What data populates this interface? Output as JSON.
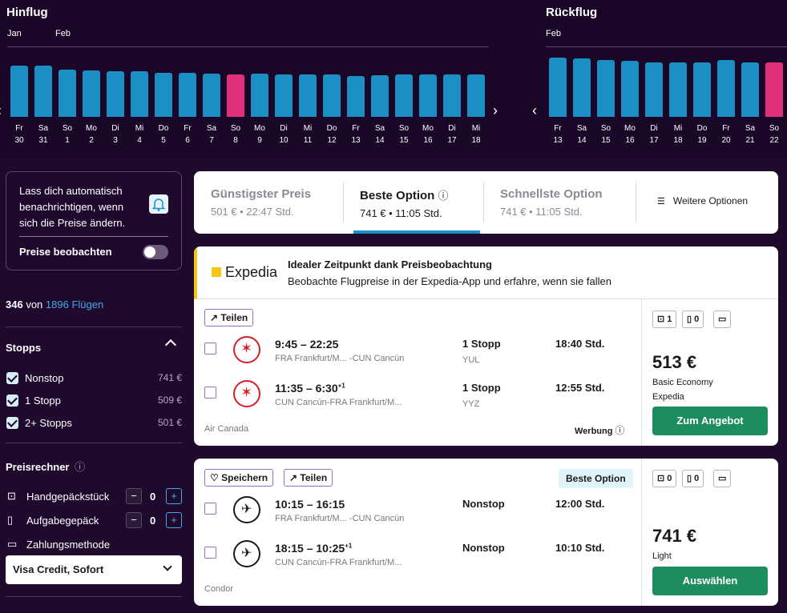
{
  "outbound": {
    "title": "Hinflug",
    "months": [
      "Jan",
      "Feb"
    ],
    "days": [
      {
        "wd": "Fr",
        "d": "30",
        "level": 0.87,
        "cheap": false
      },
      {
        "wd": "Sa",
        "d": "31",
        "level": 0.87,
        "cheap": false
      },
      {
        "wd": "So",
        "d": "1",
        "level": 0.81,
        "cheap": false
      },
      {
        "wd": "Mo",
        "d": "2",
        "level": 0.79,
        "cheap": false
      },
      {
        "wd": "Di",
        "d": "3",
        "level": 0.78,
        "cheap": false
      },
      {
        "wd": "Mi",
        "d": "4",
        "level": 0.78,
        "cheap": false
      },
      {
        "wd": "Do",
        "d": "5",
        "level": 0.76,
        "cheap": false
      },
      {
        "wd": "Fr",
        "d": "6",
        "level": 0.76,
        "cheap": false
      },
      {
        "wd": "Sa",
        "d": "7",
        "level": 0.74,
        "cheap": false
      },
      {
        "wd": "So",
        "d": "8",
        "level": 0.73,
        "cheap": true
      },
      {
        "wd": "Mo",
        "d": "9",
        "level": 0.74,
        "cheap": false
      },
      {
        "wd": "Di",
        "d": "10",
        "level": 0.72,
        "cheap": false
      },
      {
        "wd": "Mi",
        "d": "11",
        "level": 0.72,
        "cheap": false
      },
      {
        "wd": "Do",
        "d": "12",
        "level": 0.72,
        "cheap": false
      },
      {
        "wd": "Fr",
        "d": "13",
        "level": 0.7,
        "cheap": false
      },
      {
        "wd": "Sa",
        "d": "14",
        "level": 0.71,
        "cheap": false
      },
      {
        "wd": "So",
        "d": "15",
        "level": 0.72,
        "cheap": false
      },
      {
        "wd": "Mo",
        "d": "16",
        "level": 0.72,
        "cheap": false
      },
      {
        "wd": "Di",
        "d": "17",
        "level": 0.72,
        "cheap": false
      },
      {
        "wd": "Mi",
        "d": "18",
        "level": 0.72,
        "cheap": false
      }
    ]
  },
  "inbound": {
    "title": "Rückflug",
    "months": [
      "Feb"
    ],
    "days": [
      {
        "wd": "Fr",
        "d": "13",
        "level": 0.98,
        "cheap": false
      },
      {
        "wd": "Sa",
        "d": "14",
        "level": 0.97,
        "cheap": false
      },
      {
        "wd": "So",
        "d": "15",
        "level": 0.94,
        "cheap": false
      },
      {
        "wd": "Mo",
        "d": "16",
        "level": 0.93,
        "cheap": false
      },
      {
        "wd": "Di",
        "d": "17",
        "level": 0.9,
        "cheap": false
      },
      {
        "wd": "Mi",
        "d": "18",
        "level": 0.91,
        "cheap": false
      },
      {
        "wd": "Do",
        "d": "19",
        "level": 0.91,
        "cheap": false
      },
      {
        "wd": "Fr",
        "d": "20",
        "level": 0.94,
        "cheap": false
      },
      {
        "wd": "Sa",
        "d": "21",
        "level": 0.9,
        "cheap": false
      },
      {
        "wd": "So",
        "d": "22",
        "level": 0.9,
        "cheap": true
      }
    ]
  },
  "colors": {
    "bar": "#1b8fc4",
    "cheapest_bar": "#e0307a",
    "accent_green": "#1d8c5e",
    "link": "#43a8e6"
  },
  "sidebar": {
    "alert_text": "Lass dich automatisch benachrichtigen, wenn sich die Preise ändern.",
    "watch_label": "Preise beobachten",
    "count_shown": "346",
    "count_mid": "von",
    "count_total": "1896 Flügen",
    "stops_title": "Stopps",
    "stops": [
      {
        "label": "Nonstop",
        "price": "741 €"
      },
      {
        "label": "1 Stopp",
        "price": "509 €"
      },
      {
        "label": "2+ Stopps",
        "price": "501 €"
      }
    ],
    "calc_title": "Preisrechner",
    "carry_on": {
      "label": "Handgepäckstück",
      "value": "0"
    },
    "checked": {
      "label": "Aufgabegepäck",
      "value": "0"
    },
    "payment_label": "Zahlungsmethode",
    "payment_value": "Visa Credit, Sofort"
  },
  "tabs": [
    {
      "title": "Günstigster Preis",
      "sub": "501 € • 22:47 Std."
    },
    {
      "title": "Beste Option",
      "sub": "741 € • 11:05 Std."
    },
    {
      "title": "Schnellste Option",
      "sub": "741 € • 11:05 Std."
    }
  ],
  "more_options": "Weitere Optionen",
  "promo": {
    "brand": "Expedia",
    "title": "Idealer Zeitpunkt dank Preisbeobachtung",
    "text": "Beobachte Flugpreise in der Expedia-App und erfahre, wenn sie fallen"
  },
  "result1": {
    "share": "Teilen",
    "legs": [
      {
        "times": "9:45 – 22:25",
        "plus": "",
        "route": "FRA Frankfurt/M... -CUN Cancún",
        "stops": "1 Stopp",
        "via": "YUL",
        "dur": "18:40 Std."
      },
      {
        "times": "11:35 – 6:30",
        "plus": "+1",
        "route": "CUN Cancún-FRA Frankfurt/M...",
        "stops": "1 Stopp",
        "via": "YYZ",
        "dur": "12:55 Std."
      }
    ],
    "airline": "Air Canada",
    "ad": "Werbung",
    "bags": [
      "1",
      "0"
    ],
    "price": "513 €",
    "fare": "Basic Economy",
    "provider": "Expedia",
    "cta": "Zum Angebot"
  },
  "result2": {
    "save": "Speichern",
    "share": "Teilen",
    "badge": "Beste Option",
    "legs": [
      {
        "times": "10:15 – 16:15",
        "plus": "",
        "route": "FRA Frankfurt/M... -CUN Cancún",
        "stops": "Nonstop",
        "via": "",
        "dur": "12:00 Std."
      },
      {
        "times": "18:15 – 10:25",
        "plus": "+1",
        "route": "CUN Cancún-FRA Frankfurt/M...",
        "stops": "Nonstop",
        "via": "",
        "dur": "10:10 Std."
      }
    ],
    "airline": "Condor",
    "bags": [
      "0",
      "0"
    ],
    "price": "741 €",
    "fare": "Light",
    "cta": "Auswählen"
  }
}
